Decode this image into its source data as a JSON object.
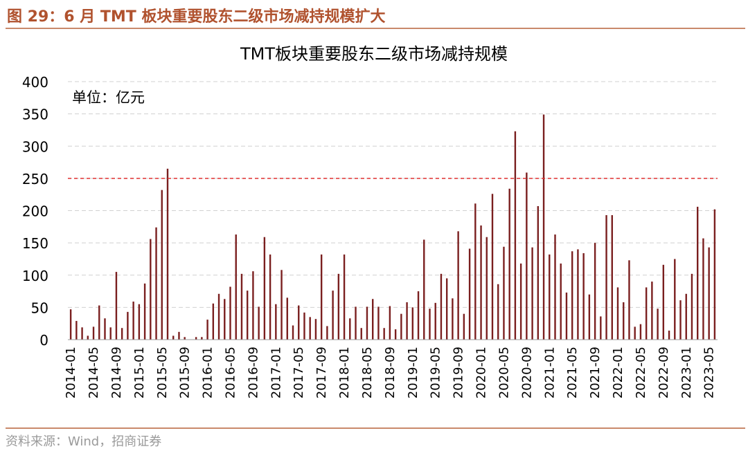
{
  "figure": {
    "title": "图 29：6 月 TMT 板块重要股东二级市场减持规模扩大",
    "source": "资料来源：Wind，招商证券"
  },
  "chart_data": {
    "type": "bar",
    "title": "TMT板块重要股东二级市场减持规模",
    "unit_note": "单位：亿元",
    "xlabel": "",
    "ylabel": "",
    "ylim": [
      0,
      400
    ],
    "yticks": [
      0,
      50,
      100,
      150,
      200,
      250,
      300,
      350,
      400
    ],
    "grid": true,
    "reference_line": {
      "value": 250,
      "color": "#e03030",
      "style": "dashed"
    },
    "bar_color": "#7a1f1f",
    "start": "2014-01",
    "tick_labels": [
      "2014-01",
      "2014-05",
      "2014-09",
      "2015-01",
      "2015-05",
      "2015-09",
      "2016-01",
      "2016-05",
      "2016-09",
      "2017-01",
      "2017-05",
      "2017-09",
      "2018-01",
      "2018-05",
      "2018-09",
      "2019-01",
      "2019-05",
      "2019-09",
      "2020-01",
      "2020-05",
      "2020-09",
      "2021-01",
      "2021-05",
      "2021-09",
      "2022-01",
      "2022-05",
      "2022-09",
      "2023-01",
      "2023-05"
    ],
    "categories": [
      "2014-01",
      "2014-02",
      "2014-03",
      "2014-04",
      "2014-05",
      "2014-06",
      "2014-07",
      "2014-08",
      "2014-09",
      "2014-10",
      "2014-11",
      "2014-12",
      "2015-01",
      "2015-02",
      "2015-03",
      "2015-04",
      "2015-05",
      "2015-06",
      "2015-07",
      "2015-08",
      "2015-09",
      "2015-10",
      "2015-11",
      "2015-12",
      "2016-01",
      "2016-02",
      "2016-03",
      "2016-04",
      "2016-05",
      "2016-06",
      "2016-07",
      "2016-08",
      "2016-09",
      "2016-10",
      "2016-11",
      "2016-12",
      "2017-01",
      "2017-02",
      "2017-03",
      "2017-04",
      "2017-05",
      "2017-06",
      "2017-07",
      "2017-08",
      "2017-09",
      "2017-10",
      "2017-11",
      "2017-12",
      "2018-01",
      "2018-02",
      "2018-03",
      "2018-04",
      "2018-05",
      "2018-06",
      "2018-07",
      "2018-08",
      "2018-09",
      "2018-10",
      "2018-11",
      "2018-12",
      "2019-01",
      "2019-02",
      "2019-03",
      "2019-04",
      "2019-05",
      "2019-06",
      "2019-07",
      "2019-08",
      "2019-09",
      "2019-10",
      "2019-11",
      "2019-12",
      "2020-01",
      "2020-02",
      "2020-03",
      "2020-04",
      "2020-05",
      "2020-06",
      "2020-07",
      "2020-08",
      "2020-09",
      "2020-10",
      "2020-11",
      "2020-12",
      "2021-01",
      "2021-02",
      "2021-03",
      "2021-04",
      "2021-05",
      "2021-06",
      "2021-07",
      "2021-08",
      "2021-09",
      "2021-10",
      "2021-11",
      "2021-12",
      "2022-01",
      "2022-02",
      "2022-03",
      "2022-04",
      "2022-05",
      "2022-06",
      "2022-07",
      "2022-08",
      "2022-09",
      "2022-10",
      "2022-11",
      "2022-12",
      "2023-01",
      "2023-02",
      "2023-03",
      "2023-04",
      "2023-05",
      "2023-06"
    ],
    "values": [
      47,
      29,
      19,
      6,
      20,
      53,
      33,
      19,
      105,
      18,
      43,
      59,
      55,
      87,
      156,
      174,
      232,
      265,
      6,
      12,
      4,
      0,
      4,
      4,
      31,
      56,
      71,
      63,
      82,
      163,
      102,
      76,
      106,
      51,
      159,
      132,
      55,
      108,
      65,
      22,
      53,
      42,
      35,
      32,
      132,
      21,
      76,
      102,
      132,
      33,
      51,
      18,
      51,
      63,
      51,
      18,
      52,
      16,
      40,
      58,
      50,
      75,
      155,
      48,
      57,
      102,
      95,
      64,
      168,
      40,
      141,
      211,
      177,
      159,
      226,
      86,
      144,
      234,
      323,
      118,
      259,
      143,
      207,
      349,
      132,
      163,
      118,
      73,
      137,
      140,
      134,
      70,
      150,
      36,
      193,
      193,
      81,
      58,
      123,
      20,
      24,
      81,
      90,
      48,
      116,
      14,
      125,
      61,
      71,
      102,
      206,
      157,
      143,
      202
    ]
  }
}
